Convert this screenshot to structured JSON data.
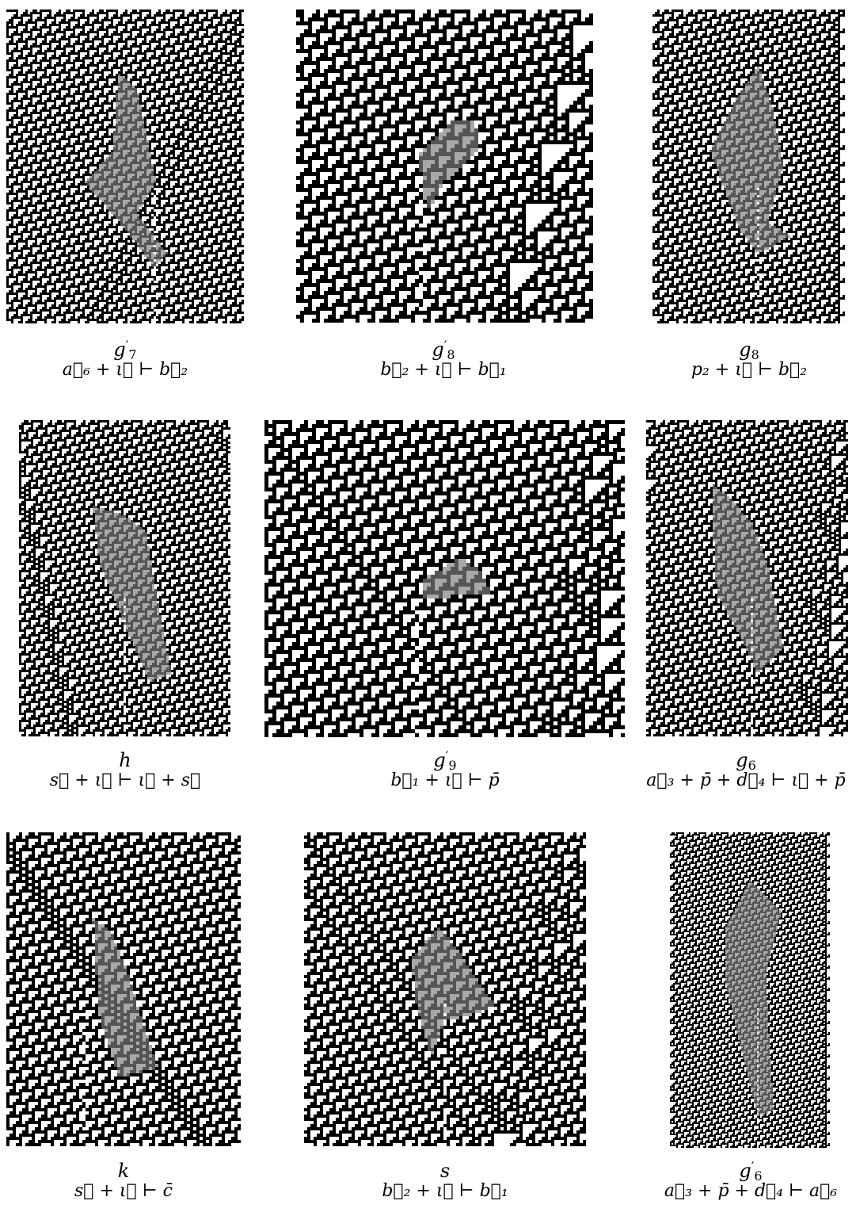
{
  "figure": {
    "panels": [
      {
        "id": "g7p",
        "name": "g",
        "sub": "7",
        "prime": "′",
        "formula": "a⃗₆ + ι⃖ ⊢ b⃗₂",
        "cell": "small"
      },
      {
        "id": "g8p",
        "name": "g",
        "sub": "8",
        "prime": "′",
        "formula": "b⃗₂ + ι⃖ ⊢ b⃗₁",
        "cell": "large"
      },
      {
        "id": "g8",
        "name": "g",
        "sub": "8",
        "prime": "",
        "formula": "p₂ + ι⃖ ⊢ b⃗₂",
        "cell": "small"
      },
      {
        "id": "h",
        "name": "h",
        "sub": "",
        "prime": "",
        "formula": "s⃗ + ι⃖ ⊢ ι⃖ + s⃗",
        "cell": "small"
      },
      {
        "id": "g9p",
        "name": "g",
        "sub": "9",
        "prime": "′",
        "formula": "b⃗₁ + ι⃖ ⊢ p̄",
        "cell": "large"
      },
      {
        "id": "g6",
        "name": "g",
        "sub": "6",
        "prime": "",
        "formula": "a⃗₃ + p̄ + d⃖₄ ⊢ ι⃖ + p̄",
        "cell": "small"
      },
      {
        "id": "k",
        "name": "k",
        "sub": "",
        "prime": "",
        "formula": "s⃗ + ι⃖ ⊢ c̄",
        "cell": "medium"
      },
      {
        "id": "s",
        "name": "s",
        "sub": "",
        "prime": "",
        "formula": "b⃗₂ + ι⃖ ⊢ b⃗₁",
        "cell": "medium"
      },
      {
        "id": "g6p",
        "name": "g",
        "sub": "6",
        "prime": "′",
        "formula": "a⃗₃ + p̄ + d⃖₄ ⊢ a⃗₆",
        "cell": "tiny"
      }
    ]
  },
  "colors": {
    "cell_black": "#000000",
    "cell_white": "#ffffff",
    "highlight_gray": "#a8a8a8",
    "highlight_dark": "#555555"
  }
}
